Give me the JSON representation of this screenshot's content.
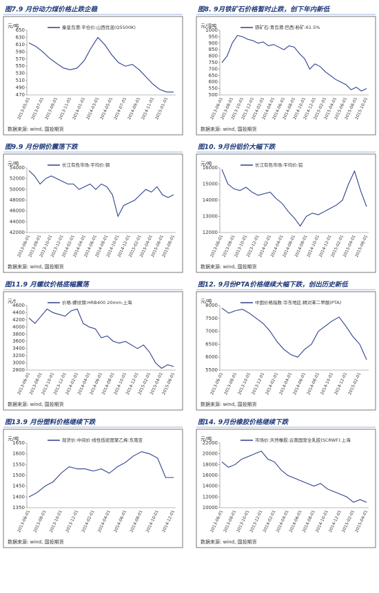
{
  "chart_data": [
    {
      "type": "line",
      "title": "图7.9 月份动力煤价格止跌企稳",
      "unit": "元/吨",
      "source": "数据来源: wind, 国投期货",
      "color": "#2b3f8c",
      "categories": [
        "2013-05-01",
        null,
        "2013-07-01",
        null,
        "2013-09-01",
        null,
        "2013-11-01",
        null,
        "2014-01-01",
        null,
        "2014-03-01",
        null,
        "2014-05-01",
        null,
        "2014-07-01",
        null,
        "2014-09-01",
        null,
        "2014-11-01",
        null,
        "2015-01-01",
        null
      ],
      "series": [
        {
          "name": "秦皇岛港:平仓价:山西优混(Q5500K)",
          "color": "#2b3f8c",
          "values": [
            615,
            605,
            590,
            572,
            558,
            545,
            540,
            545,
            565,
            600,
            630,
            610,
            582,
            560,
            550,
            555,
            540,
            520,
            500,
            485,
            478,
            478
          ]
        }
      ],
      "ylim": [
        470,
        650
      ],
      "yticks": [
        470,
        490,
        510,
        530,
        550,
        570,
        590,
        610,
        630,
        650
      ]
    },
    {
      "type": "line",
      "title": "图8. 9月铁矿石价格暂时止跌，创下年内新低",
      "unit": "元/湿吨",
      "source": "数据来源: wind, 国投期货",
      "color": "#2b3f8c",
      "categories": [
        "2013-06-01",
        null,
        "2013-08-01",
        null,
        "2013-10-01",
        null,
        "2013-12-01",
        null,
        "2014-02-01",
        null,
        "2014-04-01",
        null,
        "2014-06-01",
        null,
        "2014-08-01",
        null,
        "2014-10-01",
        null,
        "2014-12-01",
        null,
        "2015-02-01",
        null,
        "2015-04-01",
        null,
        "2015-06-01",
        null,
        "2015-08-01",
        null,
        "2015-10-01"
      ],
      "series": [
        {
          "name": "铁矿石:青岛港:巴西:粉矿:61.5%",
          "color": "#2b3f8c",
          "values": [
            750,
            800,
            900,
            960,
            950,
            930,
            920,
            900,
            910,
            880,
            890,
            870,
            850,
            880,
            870,
            820,
            780,
            700,
            740,
            720,
            680,
            650,
            620,
            600,
            580,
            540,
            560,
            530,
            550
          ]
        }
      ],
      "ylim": [
        500,
        1000
      ],
      "yticks": [
        500,
        550,
        600,
        650,
        700,
        750,
        800,
        850,
        900,
        950,
        1000
      ]
    },
    {
      "type": "line",
      "title": "图9.9 月份铜价震荡下跌",
      "unit": "元/吨",
      "source": "数据来源: wind, 国投期货",
      "color": "#2b3f8c",
      "categories": [
        "2013-06-01",
        null,
        "2013-08-01",
        null,
        "2013-10-01",
        null,
        "2013-12-01",
        null,
        "2014-02-01",
        null,
        "2014-04-01",
        null,
        "2014-06-01",
        null,
        "2014-08-01",
        null,
        "2014-10-01",
        null,
        "2014-12-01",
        null,
        "2015-02-01",
        null,
        "2015-04-01",
        null,
        "2015-06-01",
        null,
        "2015-08-01"
      ],
      "series": [
        {
          "name": "长江有色市场:平均价:铜",
          "color": "#2b3f8c",
          "values": [
            53500,
            52500,
            51000,
            52000,
            52500,
            52000,
            51500,
            51000,
            51000,
            50000,
            50500,
            51000,
            50000,
            51000,
            50500,
            49000,
            45000,
            47000,
            47500,
            48000,
            49000,
            50000,
            49500,
            50500,
            49000,
            48500,
            49000
          ]
        }
      ],
      "ylim": [
        42000,
        54000
      ],
      "yticks": [
        42000,
        44000,
        46000,
        48000,
        50000,
        52000,
        54000
      ]
    },
    {
      "type": "line",
      "title": "图10. 9月份铝价大幅下跌",
      "unit": "元/吨",
      "source": "数据来源: wind, 国投期货",
      "color": "#2b3f8c",
      "categories": [
        "2013-06-01",
        null,
        "2013-08-01",
        null,
        "2013-10-01",
        null,
        "2013-12-01",
        null,
        "2014-02-01",
        null,
        "2014-04-01",
        null,
        "2014-06-01",
        null,
        "2014-08-01",
        null,
        "2014-10-01",
        null,
        "2014-12-01",
        null,
        "2015-02-01",
        null,
        "2015-04-01",
        null,
        "2015-06-01"
      ],
      "series": [
        {
          "name": "长江有色市场:平均价:铝",
          "color": "#2b3f8c",
          "values": [
            15900,
            15000,
            14700,
            14600,
            14800,
            14500,
            14300,
            14400,
            14500,
            14100,
            13800,
            13300,
            12900,
            12400,
            13000,
            13200,
            13100,
            13300,
            13500,
            13700,
            14000,
            15000,
            15800,
            14600,
            13600
          ]
        }
      ],
      "ylim": [
        12000,
        16000
      ],
      "yticks": [
        12000,
        13000,
        14000,
        15000,
        16000
      ]
    },
    {
      "type": "line",
      "title": "图11.9 月螺纹价格底幅震荡",
      "unit": "元/t",
      "source": "数据来源: wind, 国投期货",
      "color": "#2b3f8c",
      "categories": [
        "2013-06-01",
        null,
        "2013-08-01",
        null,
        "2013-10-01",
        null,
        "2013-12-01",
        null,
        "2014-02-01",
        null,
        "2014-04-01",
        null,
        "2014-06-01",
        null,
        "2014-08-01",
        null,
        "2014-10-01",
        null,
        "2014-12-01",
        null,
        "2015-02-01",
        null,
        "2015-04-01",
        null,
        "2015-06-01"
      ],
      "series": [
        {
          "name": "价格:螺纹钢:HRB400 20mm:上海",
          "color": "#2b3f8c",
          "values": [
            4250,
            4100,
            4300,
            4500,
            4400,
            4350,
            4300,
            4450,
            4500,
            4100,
            4000,
            3950,
            3700,
            3750,
            3600,
            3550,
            3600,
            3500,
            3400,
            3500,
            3300,
            3000,
            2850,
            2950,
            2900
          ]
        }
      ],
      "ylim": [
        2800,
        4600
      ],
      "yticks": [
        2800,
        3000,
        3200,
        3400,
        3600,
        3800,
        4000,
        4200,
        4400,
        4600
      ]
    },
    {
      "type": "line",
      "title": "图12. 9月份PTA价格继续大幅下跌，创出历史新低",
      "unit": "元/吨",
      "source": "数据来源: wind, 国投期货",
      "color": "#2b3f8c",
      "categories": [
        "2013-06-01",
        null,
        "2013-08-01",
        null,
        "2013-10-01",
        null,
        "2013-12-01",
        null,
        "2014-02-01",
        null,
        "2014-04-01",
        null,
        "2014-06-01",
        null,
        "2014-08-01",
        null,
        "2014-10-01",
        null,
        "2014-12-01",
        null,
        "2015-02-01",
        null
      ],
      "series": [
        {
          "name": "中国价格指数:华东地区:精对苯二甲酸(PTA)",
          "color": "#2b3f8c",
          "values": [
            7900,
            7700,
            7800,
            7850,
            7700,
            7500,
            7300,
            7000,
            6600,
            6300,
            6100,
            6000,
            6300,
            6500,
            7000,
            7200,
            7400,
            7550,
            7200,
            6800,
            6500,
            5900
          ]
        }
      ],
      "ylim": [
        5500,
        8000
      ],
      "yticks": [
        5500,
        6000,
        6500,
        7000,
        7500,
        8000
      ]
    },
    {
      "type": "line",
      "title": "图13.9 月份塑料价格继续下跌",
      "unit": "元/吨",
      "source": "数据来源: wind, 国投期货",
      "color": "#2b3f8c",
      "categories": [
        "2013-06-01",
        null,
        "2013-08-01",
        null,
        "2013-10-01",
        null,
        "2013-12-01",
        null,
        "2014-02-01",
        null,
        "2014-04-01",
        null,
        "2014-06-01",
        null,
        "2014-08-01",
        null,
        "2014-10-01",
        null,
        "2014-12-01"
      ],
      "series": [
        {
          "name": "现货价:中间价:线性低密度聚乙烯:东南亚",
          "color": "#2b3f8c",
          "values": [
            1400,
            1420,
            1450,
            1470,
            1510,
            1540,
            1530,
            1530,
            1520,
            1530,
            1510,
            1540,
            1560,
            1590,
            1610,
            1600,
            1580,
            1490,
            1490
          ]
        }
      ],
      "ylim": [
        1350,
        1650
      ],
      "yticks": [
        1350,
        1400,
        1450,
        1500,
        1550,
        1600,
        1650
      ]
    },
    {
      "type": "line",
      "title": "图14. 9月份橡胶价格继续下跌",
      "unit": "元/吨",
      "source": "数据来源: wind, 国投期货",
      "color": "#2b3f8c",
      "categories": [
        "2013-06-01",
        null,
        "2013-08-01",
        null,
        "2013-10-01",
        null,
        "2013-12-01",
        null,
        "2014-02-01",
        null,
        "2014-04-01",
        null,
        "2014-06-01",
        null,
        "2014-08-01",
        null,
        "2014-10-01",
        null,
        "2014-12-01",
        null,
        "2015-02-01",
        null,
        "2015-04-01"
      ],
      "series": [
        {
          "name": "市场价:天然橡胶:云南国营全乳胶(SCRWF):上海",
          "color": "#2b3f8c",
          "values": [
            18500,
            17500,
            18000,
            19000,
            19500,
            20000,
            20500,
            19000,
            18500,
            17000,
            16000,
            15500,
            15000,
            14500,
            14000,
            14500,
            13500,
            13000,
            12500,
            12000,
            11000,
            11500,
            11000
          ]
        }
      ],
      "ylim": [
        10000,
        22000
      ],
      "yticks": [
        10000,
        12000,
        14000,
        16000,
        18000,
        20000,
        22000
      ]
    }
  ]
}
